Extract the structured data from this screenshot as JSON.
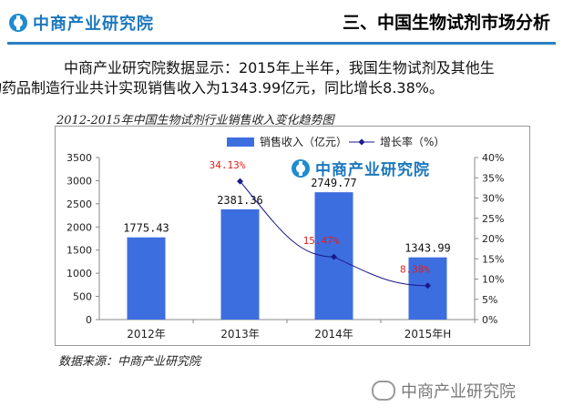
{
  "header": {
    "brand": "中商产业研究院",
    "section_title": "三、中国生物试剂市场分析"
  },
  "intro": {
    "line1": "中商产业研究院数据显示：2015年上半年，我国生物试剂及其他生",
    "line2": "物药品制造行业共计实现销售收入为1343.99亿元，同比增长8.38%。"
  },
  "chart_title": "2012-2015年中国生物试剂行业销售收入变化趋势图",
  "chart_brand": "中商产业研究院",
  "source": "数据来源：中商产业研究院",
  "watermark": "中商产业研究院",
  "colors": {
    "bar": "#3d6ee0",
    "line": "#1a1a8c",
    "growth_label": "#e0201a",
    "brand": "#1b77bd"
  },
  "chart_data": {
    "type": "bar",
    "categories": [
      "2012年",
      "2013年",
      "2014年",
      "2015年H"
    ],
    "series": [
      {
        "name": "销售收入（亿元）",
        "type": "bar",
        "axis": "left",
        "values": [
          1775.43,
          2381.36,
          2749.77,
          1343.99
        ]
      },
      {
        "name": "增长率（%）",
        "type": "line",
        "axis": "right",
        "values": [
          null,
          34.13,
          15.47,
          8.38
        ]
      }
    ],
    "bar_labels": [
      "1775.43",
      "2381.36",
      "2749.77",
      "1343.99"
    ],
    "line_labels": [
      "",
      "34.13%",
      "15.47%",
      "8.38%"
    ],
    "y_left": {
      "min": 0,
      "max": 3500,
      "ticks": [
        "0",
        "500",
        "1000",
        "1500",
        "2000",
        "2500",
        "3000",
        "3500"
      ]
    },
    "y_right": {
      "min": 0,
      "max": 40,
      "ticks": [
        "0%",
        "5%",
        "10%",
        "15%",
        "20%",
        "25%",
        "30%",
        "35%",
        "40%"
      ]
    },
    "legend_position": "top",
    "grid": false
  }
}
